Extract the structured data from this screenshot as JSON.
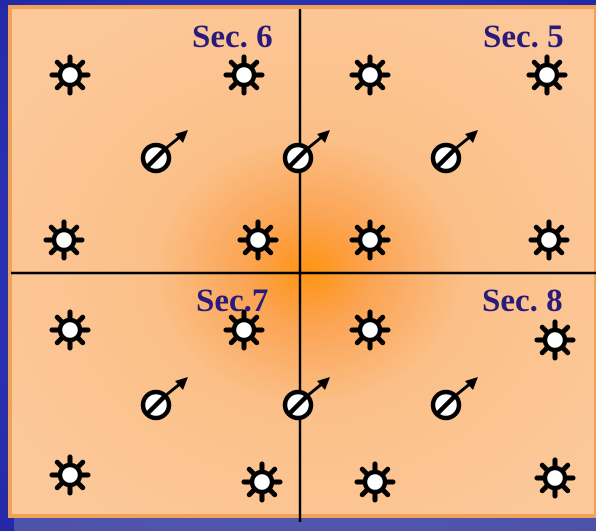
{
  "sections": [
    {
      "id": "sec6",
      "label": "Sec. 6"
    },
    {
      "id": "sec5",
      "label": "Sec. 5"
    },
    {
      "id": "sec7",
      "label": "Sec.7"
    },
    {
      "id": "sec8",
      "label": "Sec. 8"
    }
  ],
  "symbols": {
    "source_icon": "sun-star-icon",
    "detector_icon": "circle-arrow-icon"
  },
  "colors": {
    "background": "#2a2fb8",
    "panel_fill": "#fbc89a",
    "panel_glow": "#ff9a1e",
    "panel_border": "#f3a659",
    "grid_line": "#000000",
    "label_text": "#2a1b7a"
  }
}
